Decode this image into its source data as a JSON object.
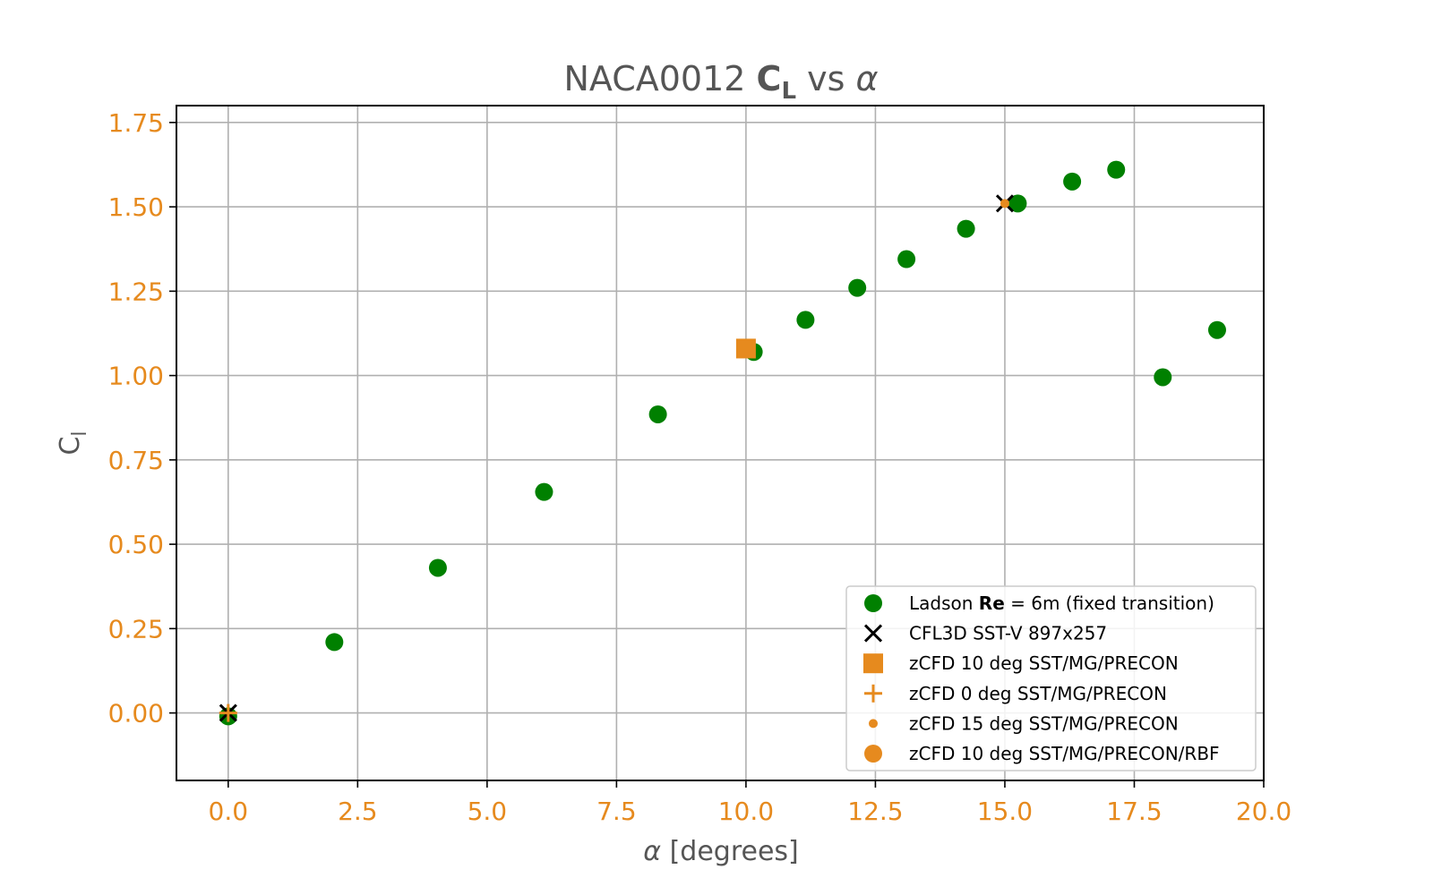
{
  "chart_data": {
    "type": "scatter",
    "title": {
      "prefix": "NACA0012 ",
      "bold": "C",
      "bold_sub": "L",
      "suffix_mid": " vs ",
      "suffix_greek": "α"
    },
    "xlabel": {
      "greek": "α",
      "text": " [degrees]"
    },
    "ylabel": {
      "main": "C",
      "sub": "l"
    },
    "xlim": [
      -1,
      20
    ],
    "ylim": [
      -0.2,
      1.8
    ],
    "xticks": [
      "0.0",
      "2.5",
      "5.0",
      "7.5",
      "10.0",
      "12.5",
      "15.0",
      "17.5",
      "20.0"
    ],
    "yticks": [
      "0.00",
      "0.25",
      "0.50",
      "0.75",
      "1.00",
      "1.25",
      "1.50",
      "1.75"
    ],
    "grid": true,
    "legend_position": "lower right",
    "series": [
      {
        "key": "ladson",
        "name": "Ladson Re = 6m (fixed transition)",
        "legend_parts": [
          "Ladson ",
          "Re",
          " = 6m (fixed transition)"
        ],
        "marker": "circle",
        "color": "#008000",
        "x": [
          0.0,
          2.05,
          4.05,
          6.1,
          8.3,
          10.15,
          11.15,
          12.15,
          13.1,
          14.25,
          15.25,
          16.3,
          17.15,
          18.05,
          19.1
        ],
        "y": [
          -0.01,
          0.21,
          0.43,
          0.655,
          0.885,
          1.07,
          1.165,
          1.26,
          1.345,
          1.435,
          1.51,
          1.575,
          1.61,
          0.995,
          1.135
        ]
      },
      {
        "key": "cfl3d",
        "name": "CFL3D SST-V 897x257",
        "marker": "x",
        "color": "#000000",
        "x": [
          0.0,
          15.0
        ],
        "y": [
          0.0,
          1.51
        ]
      },
      {
        "key": "zcfd10",
        "name": "zCFD 10 deg SST/MG/PRECON",
        "marker": "square",
        "color": "#e68a1e",
        "x": [
          10.0
        ],
        "y": [
          1.08
        ]
      },
      {
        "key": "zcfd0",
        "name": "zCFD 0 deg SST/MG/PRECON",
        "marker": "plus",
        "color": "#e68a1e",
        "x": [
          0.0
        ],
        "y": [
          0.0
        ]
      },
      {
        "key": "zcfd15",
        "name": "zCFD 15 deg SST/MG/PRECON",
        "marker": "small-circle",
        "color": "#e68a1e",
        "x": [
          15.0
        ],
        "y": [
          1.51
        ]
      },
      {
        "key": "zcfd10rbf",
        "name": "zCFD 10 deg SST/MG/PRECON/RBF",
        "marker": "circle",
        "color": "#e68a1e",
        "x": [],
        "y": []
      }
    ]
  }
}
